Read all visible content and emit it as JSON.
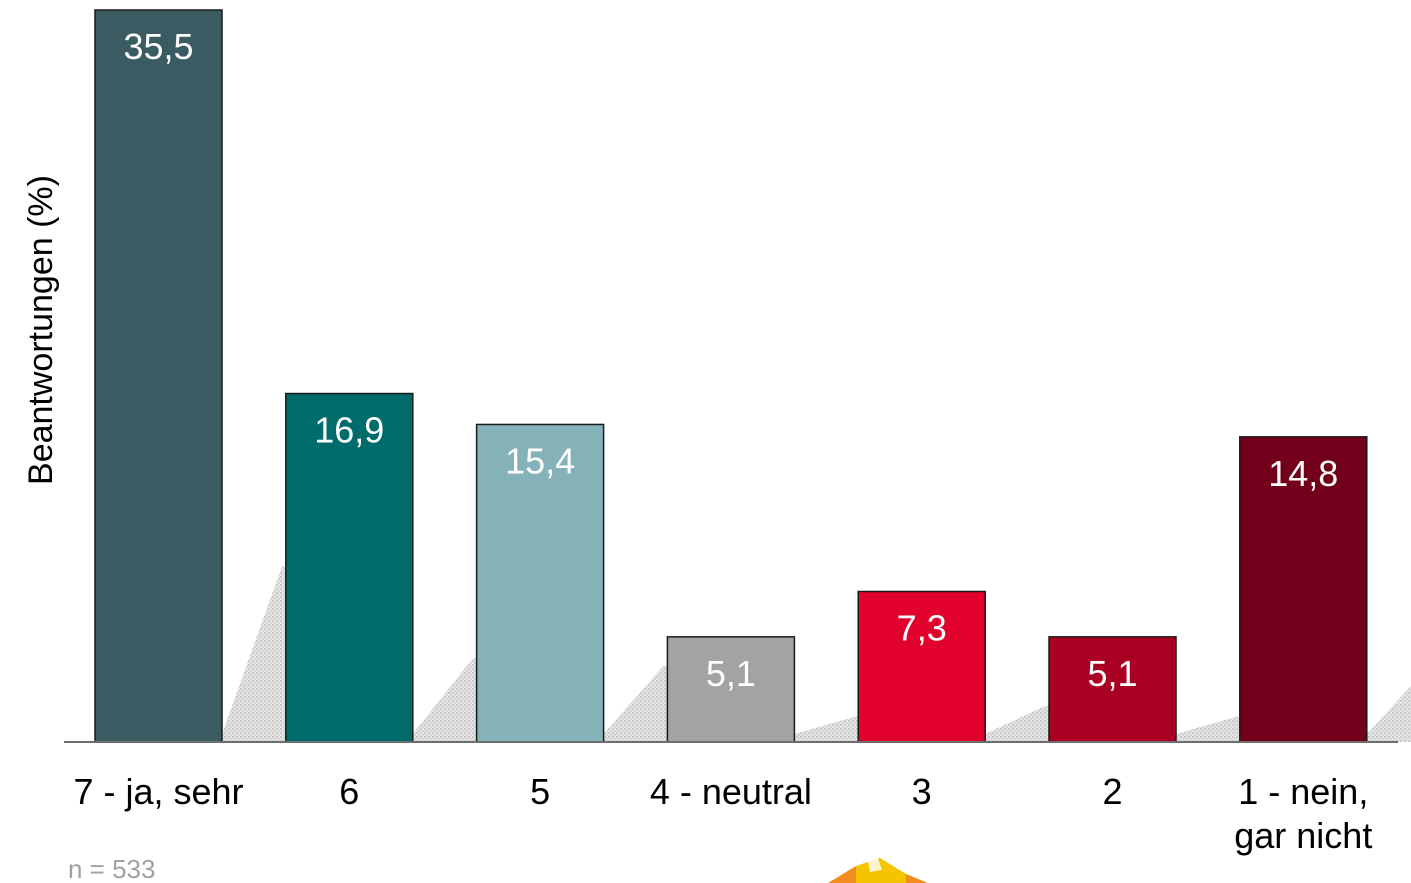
{
  "chart_data": {
    "type": "bar",
    "categories": [
      "7 - ja, sehr",
      "6",
      "5",
      "4 - neutral",
      "3",
      "2",
      "1 - nein, gar nicht"
    ],
    "values": [
      35.5,
      16.9,
      15.4,
      5.1,
      7.3,
      5.1,
      14.8
    ],
    "value_labels": [
      "35,5",
      "16,9",
      "15,4",
      "5,1",
      "7,3",
      "5,1",
      "14,8"
    ],
    "colors": [
      "#3b5b63",
      "#006b6b",
      "#85b1b8",
      "#a3a3a3",
      "#e2002d",
      "#aa0023",
      "#72001a"
    ],
    "title": "",
    "xlabel": "",
    "ylabel": "Beantwortungen (%)",
    "ylim": [
      0,
      35.5
    ],
    "grid": false,
    "legend": "none"
  },
  "note": "n = 533"
}
